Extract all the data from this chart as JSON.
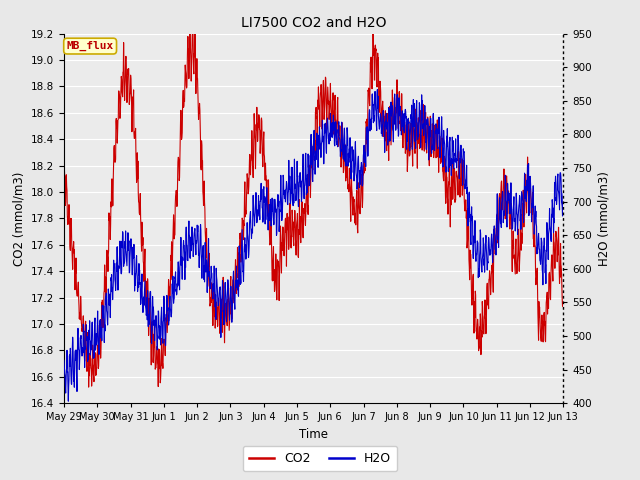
{
  "title": "LI7500 CO2 and H2O",
  "xlabel": "Time",
  "ylabel_left": "CO2 (mmol/m3)",
  "ylabel_right": "H2O (mmol/m3)",
  "ylim_left": [
    16.4,
    19.2
  ],
  "ylim_right": [
    400,
    950
  ],
  "xtick_labels": [
    "May 29",
    "May 30",
    "May 31",
    "Jun 1",
    "Jun 2",
    "Jun 3",
    "Jun 4",
    "Jun 5",
    "Jun 6",
    "Jun 7",
    "Jun 8",
    "Jun 9",
    "Jun 10",
    "Jun 11",
    "Jun 12",
    "Jun 13"
  ],
  "co2_color": "#CC0000",
  "h2o_color": "#0000CC",
  "bg_color": "#E8E8E8",
  "plot_bg_color": "#EBEBEB",
  "grid_color": "#FFFFFF",
  "annotation_text": "MB_flux",
  "annotation_bg": "#FFFFCC",
  "annotation_border": "#CCAA00",
  "legend_co2": "CO2",
  "legend_h2o": "H2O",
  "linewidth": 0.8
}
